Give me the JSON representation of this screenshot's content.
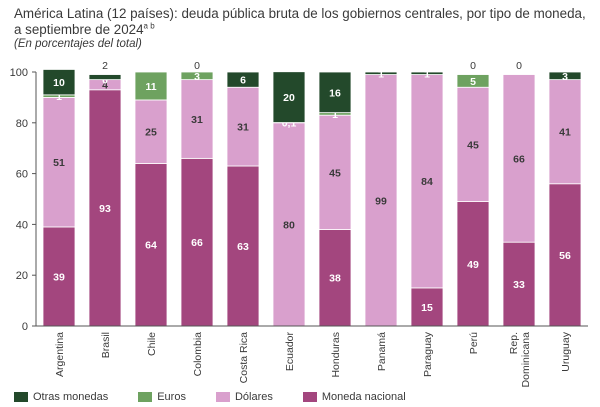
{
  "title_line1": "América Latina (12 países): deuda pública bruta de los gobiernos centrales, por tipo de moneda,",
  "title_line2": "a septiembre de 2024",
  "title_sup": "a b",
  "subtitle": "(En porcentajes del total)",
  "colors": {
    "otras": "#23492b",
    "euros": "#6ea260",
    "dolares": "#d9a0cd",
    "nacional": "#a3467e"
  },
  "legend": [
    {
      "key": "otras",
      "label": "Otras monedas"
    },
    {
      "key": "euros",
      "label": "Euros"
    },
    {
      "key": "dolares",
      "label": "Dólares"
    },
    {
      "key": "nacional",
      "label": "Moneda nacional"
    }
  ],
  "chart_data": {
    "type": "bar",
    "stacked": true,
    "title": "América Latina (12 países): deuda pública bruta de los gobiernos centrales, por tipo de moneda, a septiembre de 2024",
    "ylabel": "En porcentajes del total",
    "ylim": [
      0,
      100
    ],
    "yticks": [
      0,
      20,
      40,
      60,
      80,
      100
    ],
    "categories": [
      "Argentina",
      "Brasil",
      "Chile",
      "Colombia",
      "Costa Rica",
      "Ecuador",
      "Honduras",
      "Panamá",
      "Paraguay",
      "Perú",
      "Rep. Dominicana",
      "Uruguay"
    ],
    "category_lines": [
      [
        "Argentina"
      ],
      [
        "Brasil"
      ],
      [
        "Chile"
      ],
      [
        "Colombia"
      ],
      [
        "Costa Rica"
      ],
      [
        "Ecuador"
      ],
      [
        "Honduras"
      ],
      [
        "Panamá"
      ],
      [
        "Paraguay"
      ],
      [
        "Perú"
      ],
      [
        "Rep.",
        "Dominicana"
      ],
      [
        "Uruguay"
      ]
    ],
    "series": [
      {
        "name": "Moneda nacional",
        "key": "nacional",
        "values": [
          39,
          93,
          64,
          66,
          63,
          0,
          38,
          0,
          15,
          49,
          33,
          56
        ],
        "labels": [
          "39",
          "93",
          "64",
          "66",
          "63",
          "",
          "38",
          "",
          "15",
          "49",
          "33",
          "56"
        ]
      },
      {
        "name": "Dólares",
        "key": "dolares",
        "values": [
          51,
          4,
          25,
          31,
          31,
          80,
          45,
          99,
          84,
          45,
          66,
          41
        ],
        "labels": [
          "51",
          "4",
          "25",
          "31",
          "31",
          "80",
          "45",
          "99",
          "84",
          "45",
          "66",
          "41"
        ]
      },
      {
        "name": "Euros",
        "key": "euros",
        "values": [
          1,
          0,
          11,
          3,
          0,
          0.1,
          1,
          0,
          0,
          5,
          0,
          0
        ],
        "labels": [
          "1",
          "0",
          "11",
          "3",
          "",
          "0,1",
          "1",
          "",
          "",
          "5",
          "",
          ""
        ]
      },
      {
        "name": "Otras monedas",
        "key": "otras",
        "values": [
          10,
          2,
          0,
          0,
          6,
          20,
          16,
          1,
          1,
          0,
          0,
          3
        ],
        "labels": [
          "10",
          "",
          "",
          "",
          "6",
          "20",
          "16",
          "1",
          "1",
          "",
          "",
          "3"
        ]
      }
    ],
    "above_labels": [
      "",
      "2",
      "",
      "0",
      "",
      "",
      "",
      "",
      "",
      "0",
      "0",
      ""
    ]
  }
}
